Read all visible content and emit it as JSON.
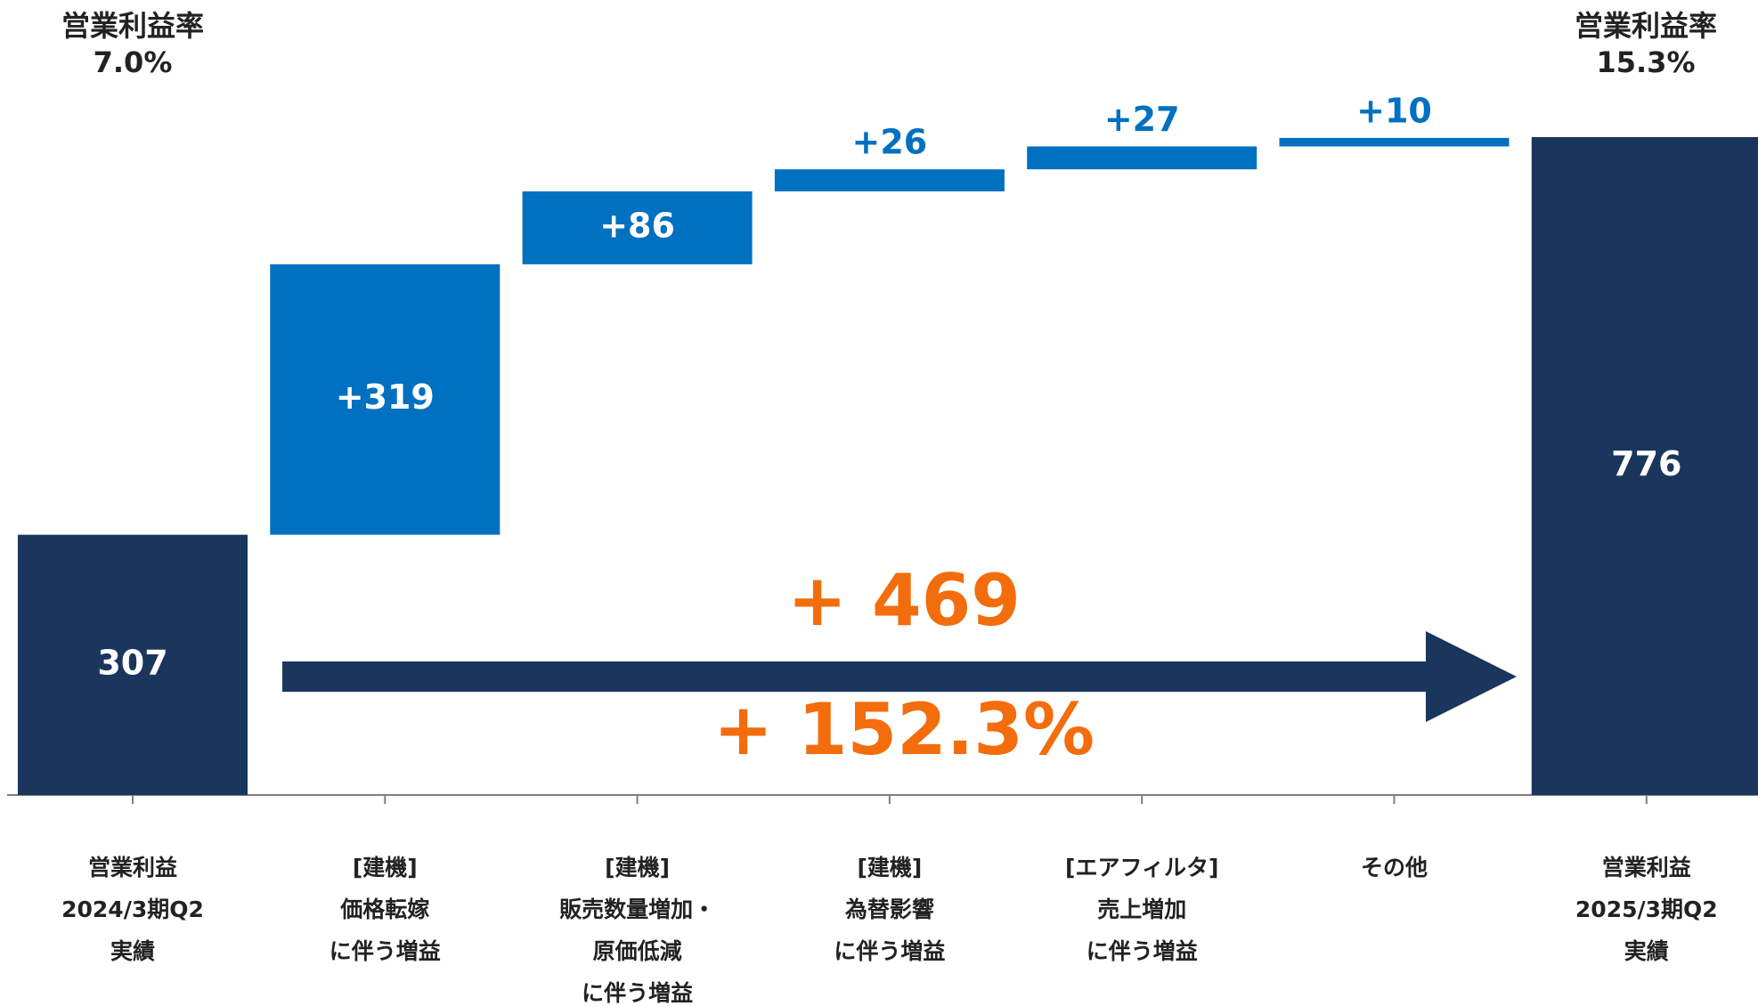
{
  "chart_data": {
    "type": "waterfall",
    "categories": [
      [
        "営業利益",
        "2024/3期Q2",
        "実績"
      ],
      [
        "[建機]",
        "価格転嫁",
        "に伴う増益"
      ],
      [
        "[建機]",
        "販売数量増加・",
        "原価低減",
        "に伴う増益"
      ],
      [
        "[建機]",
        "為替影響",
        "に伴う増益"
      ],
      [
        "[エアフィルタ]",
        "売上増加",
        "に伴う増益"
      ],
      [
        "その他"
      ],
      [
        "営業利益",
        "2025/3期Q2",
        "実績"
      ]
    ],
    "values": [
      307,
      319,
      86,
      26,
      27,
      10,
      776
    ],
    "value_labels": [
      "307",
      "+319",
      "+86",
      "+26",
      "+27",
      "+10",
      "776"
    ],
    "measure": [
      "absolute",
      "relative",
      "relative",
      "relative",
      "relative",
      "relative",
      "absolute"
    ],
    "total_color": "#1b365d",
    "increase_color": "#0070c0",
    "annotations": {
      "left_rate": [
        "営業利益率",
        "7.0%"
      ],
      "right_rate": [
        "営業利益率",
        "15.3%"
      ],
      "change_amount": "+ 469",
      "change_percent": "+ 152.3%",
      "change_color": "#f36d0d"
    }
  }
}
